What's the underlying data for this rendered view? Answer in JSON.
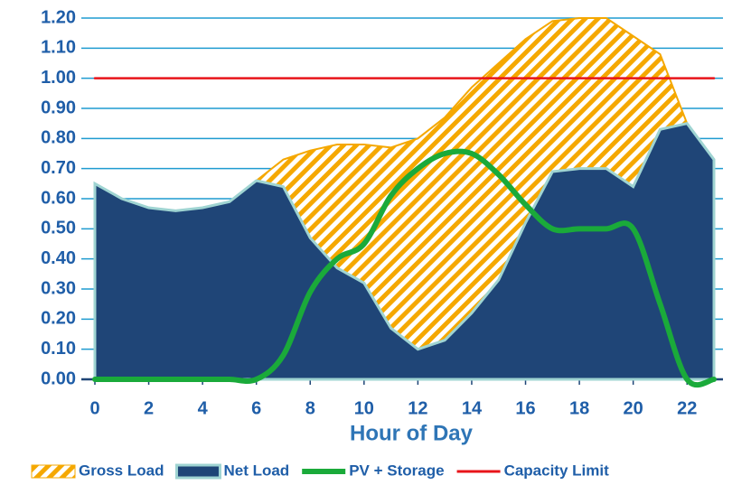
{
  "chart_data": {
    "type": "area",
    "xlabel": "Hour of Day",
    "x": [
      0,
      1,
      2,
      3,
      4,
      5,
      6,
      7,
      8,
      9,
      10,
      11,
      12,
      13,
      14,
      15,
      16,
      17,
      18,
      19,
      20,
      21,
      22,
      23
    ],
    "xlim": [
      0,
      23
    ],
    "xticks": [
      0,
      2,
      4,
      6,
      8,
      10,
      12,
      14,
      16,
      18,
      20,
      22
    ],
    "ylim": [
      0,
      1.2
    ],
    "yticks": [
      {
        "value": 0,
        "label": "0.00"
      },
      {
        "value": 0.1,
        "label": "0.10"
      },
      {
        "value": 0.2,
        "label": "0.20"
      },
      {
        "value": 0.3,
        "label": "0.30"
      },
      {
        "value": 0.4,
        "label": "0.40"
      },
      {
        "value": 0.5,
        "label": "0.50"
      },
      {
        "value": 0.6,
        "label": "0.60"
      },
      {
        "value": 0.7,
        "label": "0.70"
      },
      {
        "value": 0.8,
        "label": "0.80"
      },
      {
        "value": 0.9,
        "label": "0.90"
      },
      {
        "value": 1.0,
        "label": "1.00"
      },
      {
        "value": 1.1,
        "label": "1.10"
      },
      {
        "value": 1.2,
        "label": "1.20"
      }
    ],
    "grid": true,
    "legend": "bottom",
    "series": [
      {
        "name": "Gross Load",
        "kind": "hatched-area",
        "color": "#f5a800",
        "values": [
          0.65,
          0.6,
          0.57,
          0.56,
          0.57,
          0.59,
          0.66,
          0.73,
          0.76,
          0.78,
          0.78,
          0.77,
          0.8,
          0.87,
          0.97,
          1.05,
          1.13,
          1.19,
          1.2,
          1.2,
          1.14,
          1.08,
          0.85,
          0.73
        ]
      },
      {
        "name": "Net Load",
        "kind": "area",
        "color": "#1f4577",
        "values": [
          0.65,
          0.6,
          0.57,
          0.56,
          0.57,
          0.59,
          0.66,
          0.64,
          0.47,
          0.37,
          0.32,
          0.17,
          0.1,
          0.13,
          0.22,
          0.33,
          0.52,
          0.69,
          0.7,
          0.7,
          0.64,
          0.83,
          0.85,
          0.73
        ]
      },
      {
        "name": "PV + Storage",
        "kind": "line",
        "color": "#1aaa3a",
        "values": [
          0,
          0,
          0,
          0,
          0,
          0,
          0,
          0.08,
          0.29,
          0.4,
          0.45,
          0.61,
          0.7,
          0.75,
          0.75,
          0.68,
          0.58,
          0.5,
          0.5,
          0.5,
          0.5,
          0.25,
          0,
          0
        ]
      },
      {
        "name": "Capacity Limit",
        "kind": "line",
        "color": "#e8141a",
        "values": [
          1,
          1,
          1,
          1,
          1,
          1,
          1,
          1,
          1,
          1,
          1,
          1,
          1,
          1,
          1,
          1,
          1,
          1,
          1,
          1,
          1,
          1,
          1,
          1
        ]
      }
    ]
  }
}
